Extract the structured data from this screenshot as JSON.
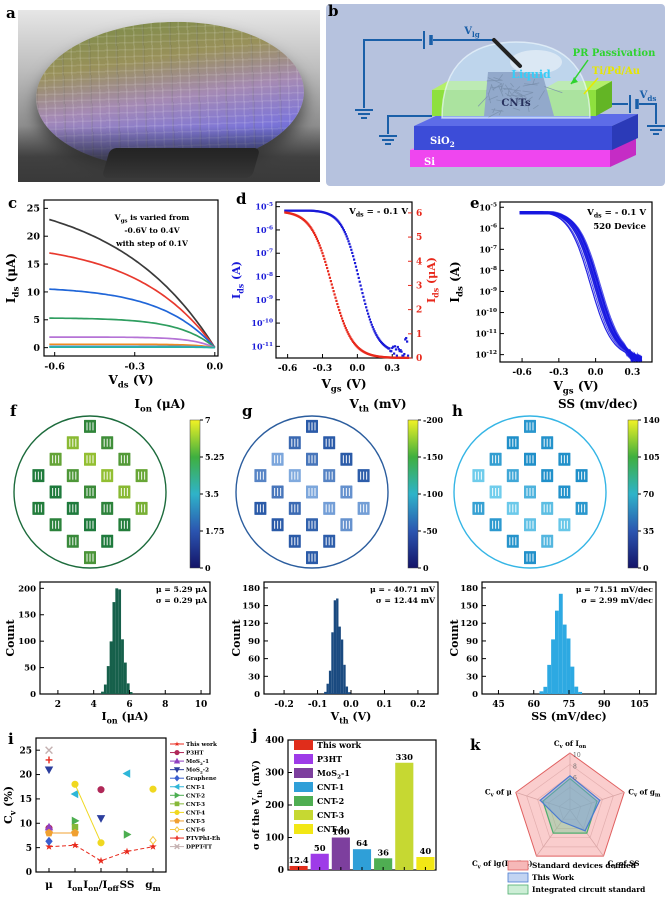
{
  "colorbar_stops": [
    "#f2f224",
    "#3faf3f",
    "#2fb3c9",
    "#2b55b0",
    "#141468"
  ],
  "panels": {
    "a": {
      "label": "a"
    },
    "b": {
      "label": "b",
      "labels": {
        "vlg": "V_{lg}",
        "vds": "V_{ds}",
        "liquid": "Liquid",
        "pr": "PR Passivation",
        "metal": "Ti/Pd/Au",
        "cnts": "CNTs",
        "sio2": "SiO_{2}",
        "si": "Si"
      }
    },
    "c": {
      "label": "c",
      "chart": {
        "type": "line",
        "xlabel": "V_{ds} (V)",
        "ylabel": "I_{ds} (μA)",
        "xlim": [
          -0.64,
          0.012
        ],
        "ylim": [
          -1.5,
          26.5
        ],
        "xticks": [
          -0.6,
          -0.3,
          0.0
        ],
        "xtick_labels": [
          "-0.6",
          "-0.3",
          "0.0"
        ],
        "yticks": [
          0,
          5,
          10,
          15,
          20,
          25
        ],
        "annotation": [
          "V_{gs} is varied from",
          "-0.6V to 0.4V",
          "with step of 0.1V"
        ],
        "series": [
          {
            "isat_uA": 23,
            "color": "#3a3a3a"
          },
          {
            "isat_uA": 17,
            "color": "#e8392e"
          },
          {
            "isat_uA": 10.5,
            "color": "#2066d8"
          },
          {
            "isat_uA": 5.3,
            "color": "#2f9e60"
          },
          {
            "isat_uA": 1.9,
            "color": "#b573d6"
          },
          {
            "isat_uA": 0.6,
            "color": "#ef8b21"
          },
          {
            "isat_uA": 0.25,
            "color": "#4a90d9"
          },
          {
            "isat_uA": 0.1,
            "color": "#27b3a6"
          }
        ]
      }
    },
    "d": {
      "label": "d",
      "chart": {
        "type": "line",
        "annotation": "V_{ds} = - 0.1 V",
        "xlabel": "V_{gs} (V)",
        "xlim": [
          -0.7,
          0.47
        ],
        "xticks": [
          -0.6,
          -0.3,
          0.0,
          0.3
        ],
        "xtick_labels": [
          "-0.6",
          "-0.3",
          "0.0",
          "0.3"
        ],
        "left_axis": {
          "label": "I_{ds} (A)",
          "color": "#1a1ad8",
          "log_exponents": [
            -5,
            -6,
            -7,
            -8,
            -9,
            -10,
            -11
          ]
        },
        "right_axis": {
          "label": "I_{ds} (μA)",
          "color": "#e8291c",
          "ticks": [
            0,
            1,
            2,
            3,
            4,
            5,
            6
          ]
        }
      }
    },
    "e": {
      "label": "e",
      "chart": {
        "type": "line",
        "annotations": [
          "V_{ds} = - 0.1 V",
          "520 Device"
        ],
        "xlabel": "V_{gs} (V)",
        "xlim": [
          -0.78,
          0.46
        ],
        "xticks": [
          -0.6,
          -0.3,
          0.0,
          0.3
        ],
        "xtick_labels": [
          "-0.6",
          "-0.3",
          "0.0",
          "0.3"
        ],
        "ylabel": "I_{ds} (A)",
        "color": "#1818e0",
        "log_exponents": [
          -5,
          -6,
          -7,
          -8,
          -9,
          -10,
          -11,
          -12
        ]
      }
    },
    "f": {
      "label": "f",
      "map": {
        "title": "I_{on} (μA)",
        "outline_color": "#1c6b3c",
        "colorbar_ticks": [
          "7",
          "5.25",
          "3.5",
          "1.75",
          "0"
        ],
        "die_colors": [
          "#1e7a3c",
          "#a8cc30"
        ],
        "seed": 0
      },
      "hist": {
        "type": "bar",
        "color": "#16604b",
        "ylabel": "Count",
        "ymax": 212,
        "yticks": [
          0,
          50,
          100,
          150,
          200
        ],
        "xlabel": "I_{on} (μA)",
        "xlim": [
          1,
          10.5
        ],
        "xticks": [
          2,
          4,
          6,
          8,
          10
        ],
        "xtick_labels": [
          "2",
          "4",
          "6",
          "8",
          "10"
        ],
        "mean": 5.29,
        "sigma": 0.29,
        "peak": 200,
        "stats": [
          "μ = 5.29 μA",
          "σ = 0.29 μA"
        ]
      }
    },
    "g": {
      "label": "g",
      "map": {
        "title": "V_{th} (mV)",
        "outline_color": "#2b5d9e",
        "colorbar_ticks": [
          "-200",
          "-150",
          "-100",
          "-50",
          "0"
        ],
        "die_colors": [
          "#2a5aa8",
          "#8fb8e8"
        ],
        "seed": 1.3
      },
      "hist": {
        "type": "bar",
        "color": "#1a4a80",
        "ylabel": "Count",
        "ymax": 190,
        "yticks": [
          0,
          30,
          60,
          90,
          120,
          150,
          180
        ],
        "xlabel": "V_{th} (V)",
        "xlim": [
          -0.26,
          0.26
        ],
        "xticks": [
          -0.2,
          -0.1,
          0.0,
          0.1,
          0.2
        ],
        "xtick_labels": [
          "-0.2",
          "-0.1",
          "0.0",
          "0.1",
          "0.2"
        ],
        "mean": -0.041,
        "sigma": 0.013,
        "peak": 162,
        "stats": [
          "μ = - 40.71 mV",
          "σ = 12.44 mV"
        ]
      }
    },
    "h": {
      "label": "h",
      "map": {
        "title": "SS (mv/dec)",
        "outline_color": "#35b5e5",
        "colorbar_ticks": [
          "140",
          "105",
          "70",
          "35",
          "0"
        ],
        "die_colors": [
          "#1f8fc9",
          "#7fd8f2"
        ],
        "seed": 2.6
      },
      "hist": {
        "type": "bar",
        "color": "#2da9e2",
        "ylabel": "Count",
        "ymax": 190,
        "yticks": [
          0,
          30,
          60,
          90,
          120,
          150,
          180
        ],
        "xlabel": "SS (mV/dec)",
        "xlim": [
          38,
          112
        ],
        "xticks": [
          45,
          60,
          75,
          90,
          105
        ],
        "xtick_labels": [
          "45",
          "60",
          "75",
          "90",
          "105"
        ],
        "mean": 71.51,
        "sigma": 2.99,
        "peak": 170,
        "stats": [
          "μ = 71.51 mV/dec",
          "σ = 2.99 mV/dec"
        ]
      }
    },
    "i": {
      "label": "i",
      "chart": {
        "type": "scatter",
        "ylabel": "C_{v} (%)",
        "ylim": [
          0,
          27.5
        ],
        "yticks": [
          0,
          5,
          10,
          15,
          20,
          25
        ],
        "categories": [
          "μ",
          "I_{on}",
          "I_{on}/I_{off}",
          "SS",
          "g_{m}"
        ],
        "series": [
          {
            "name": "This work",
            "marker": "star",
            "color": "#e8291c",
            "line": "dash",
            "points": [
              [
                0,
                5.2
              ],
              [
                1,
                5.5
              ],
              [
                2,
                2.3
              ],
              [
                3,
                4.2
              ],
              [
                4,
                5.2
              ]
            ]
          },
          {
            "name": "P3HT",
            "marker": "circle",
            "color": "#b02858",
            "points": [
              [
                0,
                9.0
              ],
              [
                2,
                16.9
              ]
            ]
          },
          {
            "name": "MoS_{2}-1",
            "marker": "tri-up",
            "color": "#9040c0",
            "points": [
              [
                0,
                9.2
              ]
            ]
          },
          {
            "name": "MoS_{2}-2",
            "marker": "tri-down",
            "color": "#2c3e9e",
            "points": [
              [
                0,
                21.0
              ],
              [
                2,
                11.0
              ]
            ]
          },
          {
            "name": "Graphene",
            "marker": "diamond",
            "color": "#3a5fd0",
            "points": [
              [
                0,
                6.3
              ]
            ]
          },
          {
            "name": "CNT-1",
            "marker": "tri-left",
            "color": "#2eb6d8",
            "points": [
              [
                1,
                16.0
              ],
              [
                3,
                20.2
              ]
            ]
          },
          {
            "name": "CNT-2",
            "marker": "tri-right",
            "color": "#4cae50",
            "points": [
              [
                1,
                10.5
              ],
              [
                3,
                7.7
              ]
            ]
          },
          {
            "name": "CNT-3",
            "marker": "square",
            "color": "#86b838",
            "points": [
              [
                1,
                9.2
              ]
            ]
          },
          {
            "name": "CNT-4",
            "marker": "circle",
            "color": "#f0d820",
            "line": "solid",
            "line_n": 2,
            "points": [
              [
                1,
                18.0
              ],
              [
                2,
                6.0
              ],
              [
                4,
                17.0
              ]
            ]
          },
          {
            "name": "CNT-5",
            "marker": "pentagon",
            "color": "#f0a030",
            "line": "solid",
            "line_n": 2,
            "points": [
              [
                0,
                8.0
              ],
              [
                1,
                8.0
              ]
            ]
          },
          {
            "name": "CNT-6",
            "marker": "diamond",
            "color": "#f5c842",
            "open": true,
            "points": [
              [
                4,
                6.5
              ]
            ]
          },
          {
            "name": "PTVPhI-Eh",
            "marker": "plus",
            "color": "#e8291c",
            "points": [
              [
                0,
                23.0
              ]
            ]
          },
          {
            "name": "DPPT-TT",
            "marker": "cross",
            "color": "#c4b0b0",
            "points": [
              [
                0,
                25.0
              ]
            ]
          }
        ]
      }
    },
    "j": {
      "label": "j",
      "chart": {
        "type": "bar",
        "ylabel": "σ of the V_{th} (mV)",
        "ylim": [
          0,
          400
        ],
        "yticks": [
          0,
          100,
          200,
          300,
          400
        ],
        "bars": [
          {
            "name": "This work",
            "value": 12.4,
            "value_label": "12.4",
            "color": "#e02d1b"
          },
          {
            "name": "P3HT",
            "value": 50,
            "value_label": "50",
            "color": "#9e3be8"
          },
          {
            "name": "MoS_{2}-1",
            "value": 100,
            "value_label": "100",
            "color": "#7d3f9e"
          },
          {
            "name": "CNT-1",
            "value": 64,
            "value_label": "64",
            "color": "#2f9fd8"
          },
          {
            "name": "CNT-2",
            "value": 36,
            "value_label": "36",
            "color": "#4fae52"
          },
          {
            "name": "CNT-3",
            "value": 330,
            "value_label": "330",
            "color": "#c6d832"
          },
          {
            "name": "CNT-4",
            "value": 40,
            "value_label": "40",
            "color": "#f2e715"
          }
        ]
      }
    },
    "k": {
      "label": "k",
      "chart": {
        "type": "radar",
        "max": 10,
        "rings": [
          2,
          4,
          6,
          8,
          10
        ],
        "ring_labels": [
          "10",
          "8",
          "6"
        ],
        "axes": [
          "C_{v} of I_{on}",
          "C_{v} of g_{m}",
          "C_{v} of SS",
          "C_{v} of lg(I_{on}/I_{off})",
          "C_{v} of μ"
        ],
        "series": [
          {
            "name": "Standard devices defined",
            "values": [
              10,
              10,
              10,
              10,
              10
            ],
            "fill": "rgba(242,130,130,0.40)",
            "stroke": "#e06060",
            "swatch": "#f6b8b8"
          },
          {
            "name": "This Work",
            "values": [
              6,
              5.5,
              4.5,
              2.5,
              5.5
            ],
            "fill": "rgba(110,155,225,0.45)",
            "stroke": "#4a7bd0",
            "swatch": "#c2d4f2"
          },
          {
            "name": "Integrated circuit standard",
            "values": [
              5.5,
              5,
              5,
              5,
              5
            ],
            "fill": "rgba(120,205,150,0.45)",
            "stroke": "#4fae6e",
            "swatch": "#cdeed6"
          }
        ]
      }
    }
  }
}
